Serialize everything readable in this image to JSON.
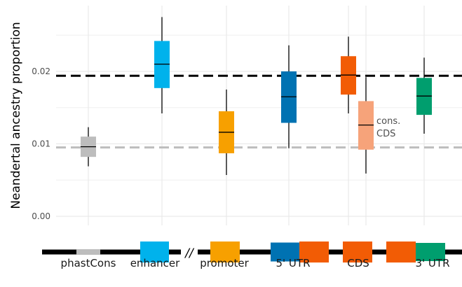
{
  "chart_data": {
    "type": "box",
    "ylabel": "Neandertal ancestry proportion",
    "ylim": [
      0,
      0.0275
    ],
    "yticks": [
      {
        "value": 0.0,
        "label": "0.00"
      },
      {
        "value": 0.01,
        "label": "0.01"
      },
      {
        "value": 0.02,
        "label": "0.02"
      }
    ],
    "grid": true,
    "reference_lines": [
      {
        "value": 0.0194,
        "color": "#000000",
        "style": "dashed"
      },
      {
        "value": 0.0095,
        "color": "#bdbdbd",
        "style": "dashed"
      }
    ],
    "series": [
      {
        "category": "phastCons",
        "color": "#bdbdbd",
        "whisker_low": 0.0069,
        "q1": 0.0082,
        "median": 0.0096,
        "q3": 0.011,
        "whisker_high": 0.0123
      },
      {
        "category": "enhancer",
        "color": "#00b2ec",
        "whisker_low": 0.0142,
        "q1": 0.0177,
        "median": 0.021,
        "q3": 0.0242,
        "whisker_high": 0.0275
      },
      {
        "category": "promoter",
        "color": "#f7a000",
        "whisker_low": 0.0057,
        "q1": 0.0087,
        "median": 0.0116,
        "q3": 0.0145,
        "whisker_high": 0.0175
      },
      {
        "category": "5' UTR",
        "color": "#0072b2",
        "whisker_low": 0.0094,
        "q1": 0.0129,
        "median": 0.0165,
        "q3": 0.02,
        "whisker_high": 0.0236
      },
      {
        "category": "CDS",
        "color": "#f25c05",
        "whisker_low": 0.0142,
        "q1": 0.0168,
        "median": 0.0195,
        "q3": 0.0221,
        "whisker_high": 0.0248
      },
      {
        "category": "cons. CDS",
        "color": "#f6a37a",
        "whisker_low": 0.0059,
        "q1": 0.0092,
        "median": 0.0126,
        "q3": 0.0159,
        "whisker_high": 0.0192
      },
      {
        "category": "3' UTR",
        "color": "#009e6e",
        "whisker_low": 0.0114,
        "q1": 0.014,
        "median": 0.0166,
        "q3": 0.0191,
        "whisker_high": 0.0219
      }
    ],
    "annotation": {
      "lines": [
        "cons.",
        "CDS"
      ],
      "color": "#4d4d4d"
    },
    "gene_track": {
      "labels": [
        "phastCons",
        "enhancer",
        "promoter",
        "5' UTR",
        "CDS",
        "3' UTR"
      ],
      "break_marker": "//",
      "segments": [
        {
          "name": "phastCons",
          "color": "#bdbdbd"
        },
        {
          "name": "enhancer",
          "color": "#00b2ec"
        },
        {
          "name": "promoter",
          "color": "#f7a000"
        },
        {
          "name": "5' UTR",
          "color": "#0072b2"
        },
        {
          "name": "CDS",
          "color": "#f25c05"
        },
        {
          "name": "CDS",
          "color": "#f25c05"
        },
        {
          "name": "CDS",
          "color": "#f25c05"
        },
        {
          "name": "3' UTR",
          "color": "#009e6e"
        }
      ]
    }
  }
}
